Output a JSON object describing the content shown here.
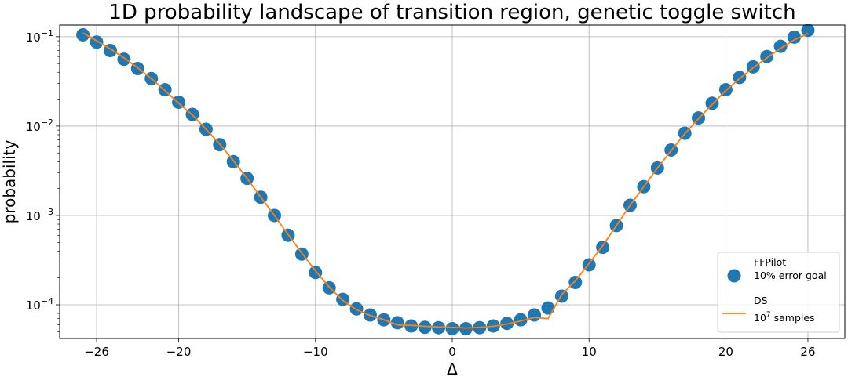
{
  "chart_data": {
    "type": "scatter",
    "title": "1D probability landscape of transition region, genetic toggle switch",
    "xlabel": "Δ",
    "ylabel": "probability",
    "xlim": [
      -28.7,
      28.7
    ],
    "ylim": [
      4.2e-05,
      0.135
    ],
    "yscale": "log",
    "grid": true,
    "legend_position": "bottom-right",
    "x_ticks": [
      -26,
      -20,
      -10,
      0,
      10,
      20,
      26
    ],
    "x_tick_labels": [
      "−26",
      "−20",
      "−10",
      "0",
      "10",
      "20",
      "26"
    ],
    "y_ticks": [
      0.0001,
      0.001,
      0.01,
      0.1
    ],
    "y_tick_labels": [
      {
        "base": "10",
        "exp": "−4"
      },
      {
        "base": "10",
        "exp": "−3"
      },
      {
        "base": "10",
        "exp": "−2"
      },
      {
        "base": "10",
        "exp": "−1"
      }
    ],
    "series": [
      {
        "name": "FFPilot",
        "name_line2": "10% error goal",
        "kind": "scatter",
        "color": "#1f77b4",
        "points": [
          [
            -27,
            0.105
          ],
          [
            -26,
            0.087
          ],
          [
            -25,
            0.07
          ],
          [
            -24,
            0.056
          ],
          [
            -23,
            0.044
          ],
          [
            -22,
            0.034
          ],
          [
            -21,
            0.0255
          ],
          [
            -20,
            0.0185
          ],
          [
            -19,
            0.0135
          ],
          [
            -18,
            0.0092
          ],
          [
            -17,
            0.0062
          ],
          [
            -16,
            0.004
          ],
          [
            -15,
            0.0026
          ],
          [
            -14,
            0.0016
          ],
          [
            -13,
            0.001
          ],
          [
            -12,
            0.0006
          ],
          [
            -11,
            0.00037
          ],
          [
            -10,
            0.00023
          ],
          [
            -9,
            0.000155
          ],
          [
            -8,
            0.000115
          ],
          [
            -7,
            9e-05
          ],
          [
            -6,
            7.7e-05
          ],
          [
            -5,
            6.8e-05
          ],
          [
            -4,
            6.3e-05
          ],
          [
            -3,
            5.8e-05
          ],
          [
            -2,
            5.6e-05
          ],
          [
            -1,
            5.55e-05
          ],
          [
            0,
            5.4e-05
          ],
          [
            1,
            5.4e-05
          ],
          [
            2,
            5.55e-05
          ],
          [
            3,
            5.8e-05
          ],
          [
            4,
            6.2e-05
          ],
          [
            5,
            6.8e-05
          ],
          [
            6,
            7.7e-05
          ],
          [
            7,
            9.2e-05
          ],
          [
            8,
            0.000125
          ],
          [
            9,
            0.000178
          ],
          [
            10,
            0.00028
          ],
          [
            11,
            0.00044
          ],
          [
            12,
            0.00077
          ],
          [
            13,
            0.0013
          ],
          [
            14,
            0.0021
          ],
          [
            15,
            0.0034
          ],
          [
            16,
            0.0054
          ],
          [
            17,
            0.0083
          ],
          [
            18,
            0.0123
          ],
          [
            19,
            0.018
          ],
          [
            20,
            0.0255
          ],
          [
            21,
            0.035
          ],
          [
            22,
            0.046
          ],
          [
            23,
            0.06
          ],
          [
            24,
            0.078
          ],
          [
            25,
            0.099
          ],
          [
            26,
            0.118
          ]
        ]
      },
      {
        "name": "DS",
        "name_line2": {
          "base": "10",
          "exp": "7",
          "suffix": " samples"
        },
        "kind": "line",
        "color": "#ff7f0e",
        "points": [
          [
            -27,
            0.11
          ],
          [
            -26,
            0.09
          ],
          [
            -25,
            0.073
          ],
          [
            -24,
            0.058
          ],
          [
            -23,
            0.045
          ],
          [
            -22,
            0.034
          ],
          [
            -21,
            0.025
          ],
          [
            -20,
            0.018
          ],
          [
            -19,
            0.0133
          ],
          [
            -18,
            0.0092
          ],
          [
            -17,
            0.0063
          ],
          [
            -16,
            0.0041
          ],
          [
            -15,
            0.0026
          ],
          [
            -14,
            0.0016
          ],
          [
            -13,
            0.001
          ],
          [
            -12,
            0.00061
          ],
          [
            -11,
            0.00038
          ],
          [
            -10,
            0.00024
          ],
          [
            -9,
            0.000158
          ],
          [
            -8,
            0.000112
          ],
          [
            -7,
            8.8e-05
          ],
          [
            -6,
            7.6e-05
          ],
          [
            -5,
            6.8e-05
          ],
          [
            -4,
            5.95e-05
          ],
          [
            -3,
            5.9e-05
          ],
          [
            -2,
            5.75e-05
          ],
          [
            -1,
            5.65e-05
          ],
          [
            0,
            5.6e-05
          ],
          [
            1,
            5.5e-05
          ],
          [
            2,
            5.6e-05
          ],
          [
            3,
            5.75e-05
          ],
          [
            4,
            6.1e-05
          ],
          [
            5,
            6.6e-05
          ],
          [
            6,
            7.2e-05
          ],
          [
            7,
            7e-05
          ],
          [
            8,
            0.00013
          ],
          [
            9,
            0.000185
          ],
          [
            10,
            0.00029
          ],
          [
            11,
            0.00046
          ],
          [
            12,
            0.00077
          ],
          [
            13,
            0.0013
          ],
          [
            14,
            0.0021
          ],
          [
            15,
            0.0034
          ],
          [
            16,
            0.0053
          ],
          [
            17,
            0.0082
          ],
          [
            18,
            0.0121
          ],
          [
            19,
            0.0175
          ],
          [
            20,
            0.025
          ],
          [
            21,
            0.034
          ],
          [
            22,
            0.045
          ],
          [
            23,
            0.058
          ],
          [
            24,
            0.074
          ],
          [
            25,
            0.092
          ],
          [
            26,
            0.109
          ]
        ]
      }
    ]
  }
}
